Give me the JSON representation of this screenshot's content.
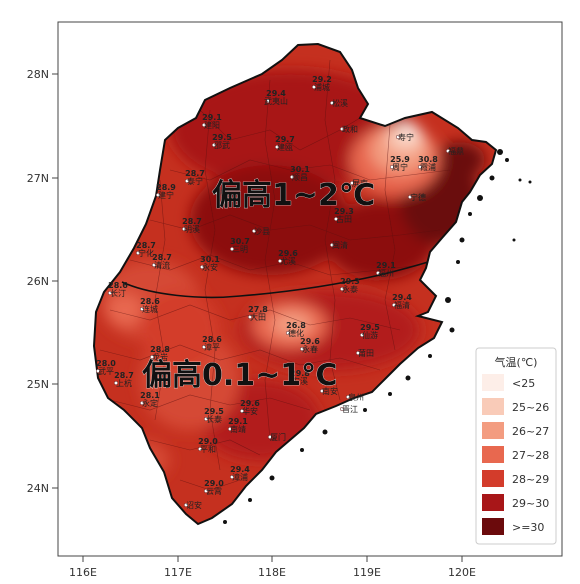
{
  "lon_labels": [
    "116E",
    "117E",
    "118E",
    "119E",
    "120E"
  ],
  "lat_labels": [
    "28N",
    "27N",
    "26N",
    "25N",
    "24N"
  ],
  "regions": {
    "north": "偏高1~2℃",
    "south": "偏高0.1~1℃"
  },
  "legend": {
    "title": "气温(℃)",
    "items": [
      {
        "label": "<25",
        "color": "#fdeee8"
      },
      {
        "label": "25~26",
        "color": "#f9cbb8"
      },
      {
        "label": "26~27",
        "color": "#f39c80"
      },
      {
        "label": "27~28",
        "color": "#e8684f"
      },
      {
        "label": "28~29",
        "color": "#d33c2b"
      },
      {
        "label": "29~30",
        "color": "#a81618"
      },
      {
        "label": ">=30",
        "color": "#6b0a0c"
      }
    ]
  },
  "cities": [
    {
      "name": "浦城",
      "temp": "29.2"
    },
    {
      "name": "松溪",
      "temp": ""
    },
    {
      "name": "武夷山",
      "temp": "29.4"
    },
    {
      "name": "建阳",
      "temp": "29.1"
    },
    {
      "name": "政和",
      "temp": ""
    },
    {
      "name": "邵武",
      "temp": "29.5"
    },
    {
      "name": "建瓯",
      "temp": "29.7"
    },
    {
      "name": "寿宁",
      "temp": ""
    },
    {
      "name": "周宁",
      "temp": "25.9"
    },
    {
      "name": "福鼎",
      "temp": ""
    },
    {
      "name": "霞浦",
      "temp": "30.8"
    },
    {
      "name": "顺昌",
      "temp": "30.1"
    },
    {
      "name": "泰宁",
      "temp": "28.7"
    },
    {
      "name": "建宁",
      "temp": "28.9"
    },
    {
      "name": "将乐",
      "temp": ""
    },
    {
      "name": "屏南",
      "temp": ""
    },
    {
      "name": "宁德",
      "temp": ""
    },
    {
      "name": "古田",
      "temp": "29.3"
    },
    {
      "name": "明溪",
      "temp": "28.7"
    },
    {
      "name": "宁化",
      "temp": "28.7"
    },
    {
      "name": "清流",
      "temp": "28.7"
    },
    {
      "name": "三明",
      "temp": "30.7"
    },
    {
      "name": "沙县",
      "temp": ""
    },
    {
      "name": "尤溪",
      "temp": "29.6"
    },
    {
      "name": "闽清",
      "temp": ""
    },
    {
      "name": "福州",
      "temp": "29.1"
    },
    {
      "name": "长汀",
      "temp": "28.6"
    },
    {
      "name": "连城",
      "temp": "28.6"
    },
    {
      "name": "永安",
      "temp": "30.1"
    },
    {
      "name": "大田",
      "temp": "27.8"
    },
    {
      "name": "德化",
      "temp": "26.8"
    },
    {
      "name": "永泰",
      "temp": "29.3"
    },
    {
      "name": "福清",
      "temp": "29.4"
    },
    {
      "name": "武平",
      "temp": "28.0"
    },
    {
      "name": "上杭",
      "temp": "28.7"
    },
    {
      "name": "漳平",
      "temp": "28.6"
    },
    {
      "name": "龙岩",
      "temp": "28.8"
    },
    {
      "name": "永春",
      "temp": "29.6"
    },
    {
      "name": "仙游",
      "temp": "29.5"
    },
    {
      "name": "莆田",
      "temp": ""
    },
    {
      "name": "安溪",
      "temp": "29.8"
    },
    {
      "name": "南安",
      "temp": ""
    },
    {
      "name": "泉州",
      "temp": ""
    },
    {
      "name": "晋江",
      "temp": ""
    },
    {
      "name": "永定",
      "temp": "28.1"
    },
    {
      "name": "华安",
      "temp": "29.6"
    },
    {
      "name": "长泰",
      "temp": "29.5"
    },
    {
      "name": "南靖",
      "temp": "29.1"
    },
    {
      "name": "厦门",
      "temp": ""
    },
    {
      "name": "平和",
      "temp": "29.0"
    },
    {
      "name": "漳浦",
      "temp": "29.4"
    },
    {
      "name": "云霄",
      "temp": "29.0"
    },
    {
      "name": "诏安",
      "temp": ""
    }
  ]
}
